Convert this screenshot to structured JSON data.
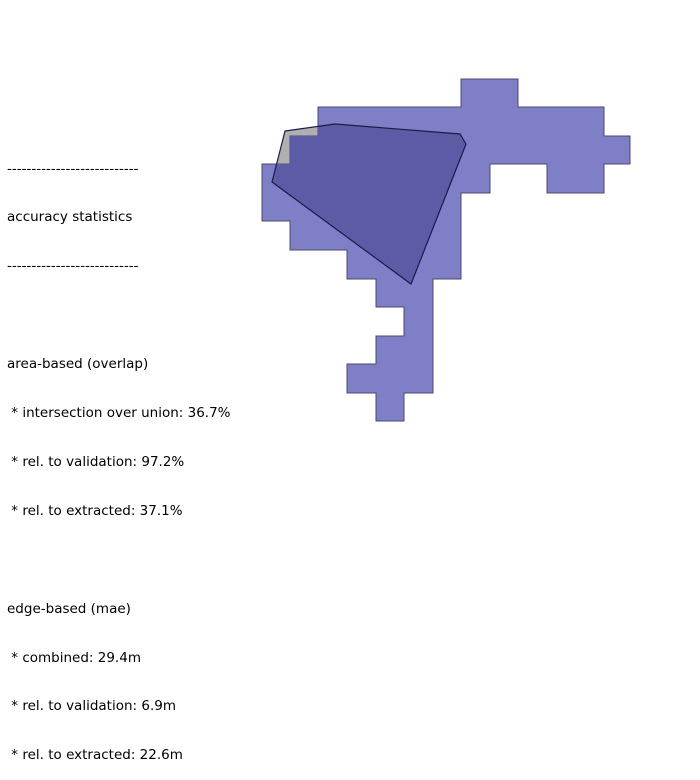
{
  "stats": {
    "divider_top": "---------------------------",
    "header": "accuracy statistics",
    "divider_bottom": "---------------------------",
    "area_section": {
      "title": "area-based (overlap)",
      "items": [
        " * intersection over union: 36.7%",
        " * rel. to validation: 97.2%",
        " * rel. to extracted: 37.1%"
      ]
    },
    "edge_section": {
      "title": "edge-based (mae)",
      "items": [
        " * combined: 29.4m",
        " * rel. to validation: 6.9m",
        " * rel. to extracted: 22.6m"
      ]
    }
  },
  "colors": {
    "extracted_fill": "#7f7fc7",
    "validation_fill": "#a8a8a8",
    "overlap_fill": "#5f5fa8",
    "outline": "#1a1a4a"
  }
}
